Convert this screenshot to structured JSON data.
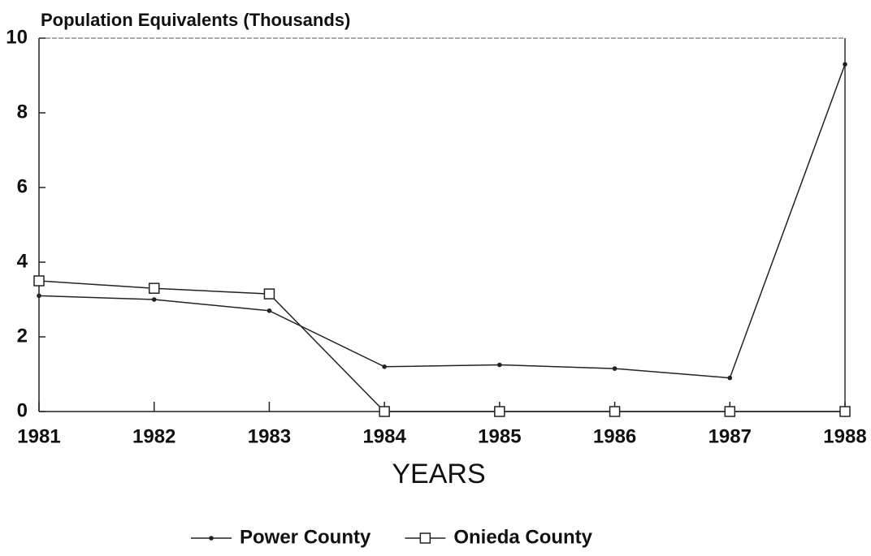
{
  "chart_data": {
    "type": "line",
    "title": "Population Equivalents (Thousands)",
    "x_label": "YEARS",
    "x": [
      1981,
      1982,
      1983,
      1984,
      1985,
      1986,
      1987,
      1988
    ],
    "xlim": [
      1981,
      1988
    ],
    "xticks": [
      1981,
      1982,
      1983,
      1984,
      1985,
      1986,
      1987,
      1988
    ],
    "ylim": [
      0,
      10
    ],
    "yticks": [
      0,
      2,
      4,
      6,
      8,
      10
    ],
    "legend": "bottom",
    "series": [
      {
        "name": "Power County",
        "color": "#222222",
        "marker": "dot",
        "values": [
          3.1,
          3.0,
          2.7,
          1.2,
          1.25,
          1.15,
          0.9,
          9.3
        ]
      },
      {
        "name": "Onieda County",
        "color": "#222222",
        "marker": "square",
        "values": [
          3.5,
          3.3,
          3.15,
          0,
          0,
          0,
          0,
          0
        ]
      }
    ]
  }
}
